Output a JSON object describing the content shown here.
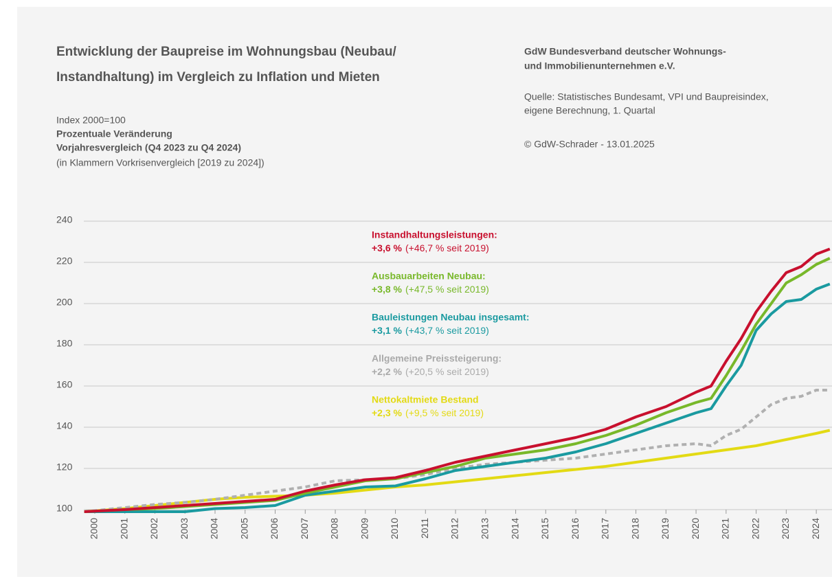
{
  "chart_data": {
    "type": "line",
    "title": [
      "Entwicklung der Baupreise im Wohnungsbau (Neubau/",
      "Instandhaltung) im Vergleich zu Inflation und Mieten"
    ],
    "index_note": "Index 2000=100",
    "subtitle": [
      "Prozentuale Veränderung",
      "Vorjahresvergleich (Q4 2023 zu Q4 2024)"
    ],
    "note": "(in Klammern Vorkrisenvergleich [2019 zu 2024])",
    "publisher": [
      "GdW Bundesverband deutscher Wohnungs-",
      "und Immobilienunternehmen e.V."
    ],
    "source": [
      "Quelle: Statistisches Bundesamt, VPI und Baupreisindex,",
      "eigene Berechnung, 1. Quartal"
    ],
    "copyright": "© GdW-Schrader - 13.01.2025",
    "xlim": [
      1999.635,
      2024.5
    ],
    "xticks": [
      2000,
      2001,
      2002,
      2003,
      2004,
      2005,
      2006,
      2007,
      2008,
      2009,
      2010,
      2011,
      2012,
      2013,
      2014,
      2015,
      2016,
      2017,
      2018,
      2019,
      2020,
      2021,
      2022,
      2023,
      2024
    ],
    "ylim": [
      100,
      240
    ],
    "yticks": [
      100,
      120,
      140,
      160,
      180,
      200,
      220,
      240
    ],
    "grid": true,
    "x": [
      1999.65,
      2001,
      2002,
      2003,
      2004,
      2005,
      2006,
      2007,
      2008,
      2009,
      2010,
      2011,
      2012,
      2013,
      2014,
      2015,
      2016,
      2017,
      2018,
      2019,
      2020,
      2020.5,
      2021,
      2021.5,
      2022,
      2022.5,
      2023,
      2023.5,
      2024,
      2024.45
    ],
    "series": [
      {
        "name": "Nettokaltmiete Bestand",
        "color": "#e3da14",
        "dashed": false,
        "change": "+2,3 %",
        "since": "(+9,5 % seit 2019)",
        "values": [
          99,
          100.5,
          102,
          103.5,
          105,
          106,
          106.5,
          107,
          108,
          109.5,
          111,
          112,
          113.5,
          115,
          116.5,
          118,
          119.5,
          121,
          123,
          125,
          127,
          128,
          129,
          130,
          131,
          132.5,
          134,
          135.5,
          137,
          138.5
        ]
      },
      {
        "name": "Allgemeine Preissteigerung:",
        "color": "#b0b0b0",
        "dashed": true,
        "change": "+2,2 %",
        "since": "(+20,5 % seit 2019)",
        "values": [
          99,
          101,
          102.5,
          103.5,
          105,
          107,
          109,
          111,
          114,
          114.5,
          115,
          117,
          120,
          122,
          123,
          124,
          125,
          127,
          129,
          131,
          132,
          131,
          136,
          139,
          145,
          151,
          154,
          155,
          158,
          158
        ]
      },
      {
        "name": "Bauleistungen Neubau insgesamt:",
        "color": "#1a9aa0",
        "dashed": false,
        "change": "+3,1 %",
        "since": "(+43,7 % seit 2019)",
        "values": [
          99,
          99,
          99,
          99,
          100.5,
          101,
          102,
          107,
          109,
          111,
          111.5,
          115,
          119,
          121,
          123,
          125,
          128,
          132,
          137,
          142,
          147,
          149,
          160,
          170,
          187,
          195,
          201,
          202,
          207,
          209.5
        ]
      },
      {
        "name": "Ausbauarbeiten Neubau:",
        "color": "#78b82a",
        "dashed": false,
        "change": "+3,8 %",
        "since": "(+47,5 % seit 2019)",
        "values": [
          99,
          100,
          100.5,
          101.5,
          102.5,
          103.5,
          104.5,
          108,
          111,
          114,
          115,
          118,
          121,
          125,
          127,
          129,
          132,
          136,
          141,
          147,
          152,
          154,
          165,
          177,
          190,
          200,
          210,
          214,
          219,
          222
        ]
      },
      {
        "name": "Instandhaltungsleistungen:",
        "color": "#c8102e",
        "dashed": false,
        "change": "+3,6 %",
        "since": "(+46,7 % seit 2019)",
        "values": [
          99,
          100,
          101,
          102,
          103,
          104,
          105,
          109,
          112,
          114.5,
          115.5,
          119,
          123,
          126,
          129,
          132,
          135,
          139,
          145,
          150,
          157,
          160,
          172,
          183,
          196,
          206,
          215,
          218,
          224,
          226.5
        ]
      }
    ]
  }
}
